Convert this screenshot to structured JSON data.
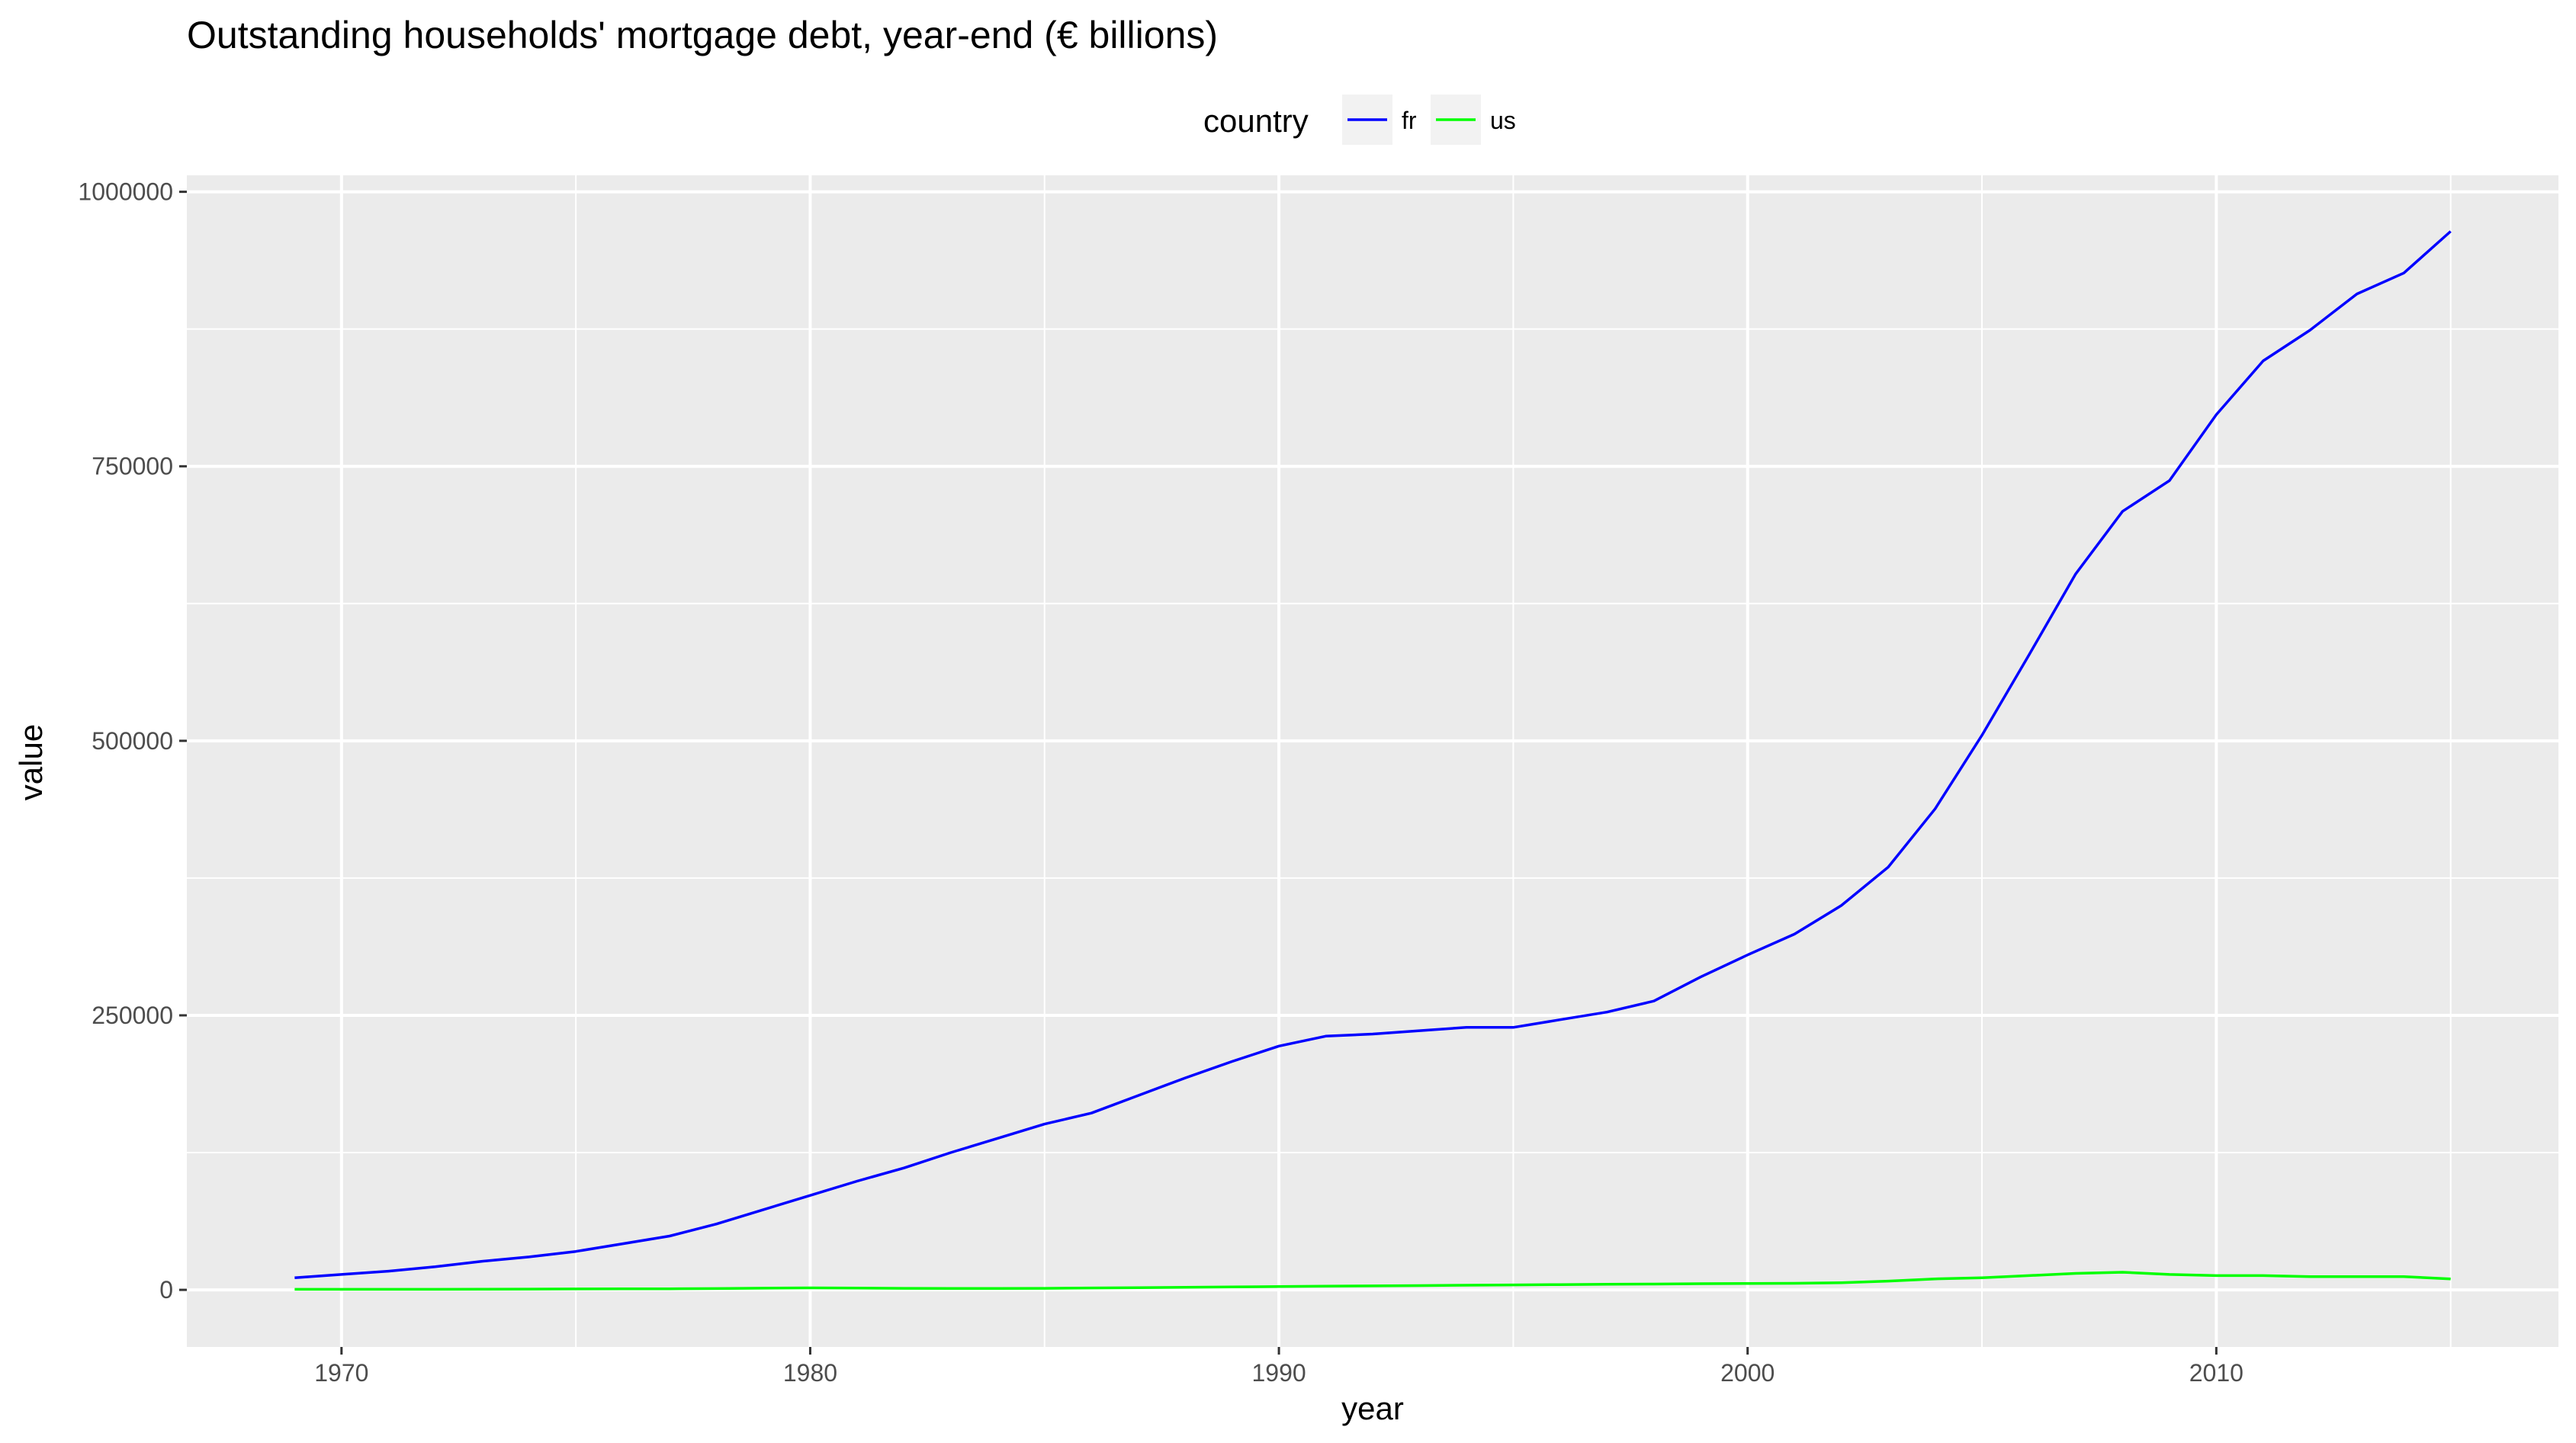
{
  "chart_data": {
    "type": "line",
    "title": "Outstanding households' mortgage debt, year-end (€ billions)",
    "xlabel": "year",
    "ylabel": "value",
    "xlim": [
      1966.7,
      2017.3
    ],
    "ylim": [
      -52000,
      1015000
    ],
    "x_ticks": [
      1970,
      1980,
      1990,
      2000,
      2010
    ],
    "y_ticks": [
      0,
      250000,
      500000,
      750000,
      1000000
    ],
    "x_tick_labels": [
      "1970",
      "1980",
      "1990",
      "2000",
      "2010"
    ],
    "y_tick_labels": [
      "0",
      "250000",
      "500000",
      "750000",
      "1000000"
    ],
    "grid": true,
    "legend": {
      "title": "country",
      "position": "top"
    },
    "background": "#ebebeb",
    "grid_color": "#ffffff",
    "x": [
      1969,
      1970,
      1971,
      1972,
      1973,
      1974,
      1975,
      1976,
      1977,
      1978,
      1979,
      1980,
      1981,
      1982,
      1983,
      1984,
      1985,
      1986,
      1987,
      1988,
      1989,
      1990,
      1991,
      1992,
      1993,
      1994,
      1995,
      1996,
      1997,
      1998,
      1999,
      2000,
      2001,
      2002,
      2003,
      2004,
      2005,
      2006,
      2007,
      2008,
      2009,
      2010,
      2011,
      2012,
      2013,
      2014,
      2015
    ],
    "series": [
      {
        "name": "fr",
        "color": "#0000ff",
        "values": [
          11000,
          14000,
          17000,
          21000,
          26000,
          30000,
          35000,
          42000,
          49000,
          60000,
          73000,
          86000,
          99000,
          111000,
          125000,
          138000,
          151000,
          161000,
          177000,
          193000,
          208000,
          222000,
          231000,
          233000,
          236000,
          239000,
          239000,
          246000,
          253000,
          263000,
          285000,
          305000,
          324000,
          350000,
          385000,
          438000,
          505000,
          578000,
          652000,
          709000,
          737000,
          797000,
          846000,
          874000,
          907000,
          926000,
          964000
        ]
      },
      {
        "name": "us",
        "color": "#00ff00",
        "values": [
          500,
          500,
          500,
          500,
          600,
          700,
          800,
          900,
          1000,
          1200,
          1500,
          1800,
          1600,
          1400,
          1300,
          1300,
          1400,
          1700,
          2000,
          2300,
          2600,
          3000,
          3300,
          3600,
          3900,
          4200,
          4500,
          4800,
          5100,
          5300,
          5600,
          5800,
          6000,
          6500,
          8000,
          10000,
          11000,
          13000,
          15000,
          16000,
          14000,
          13000,
          13000,
          12000,
          12000,
          12000,
          10000
        ]
      }
    ]
  }
}
